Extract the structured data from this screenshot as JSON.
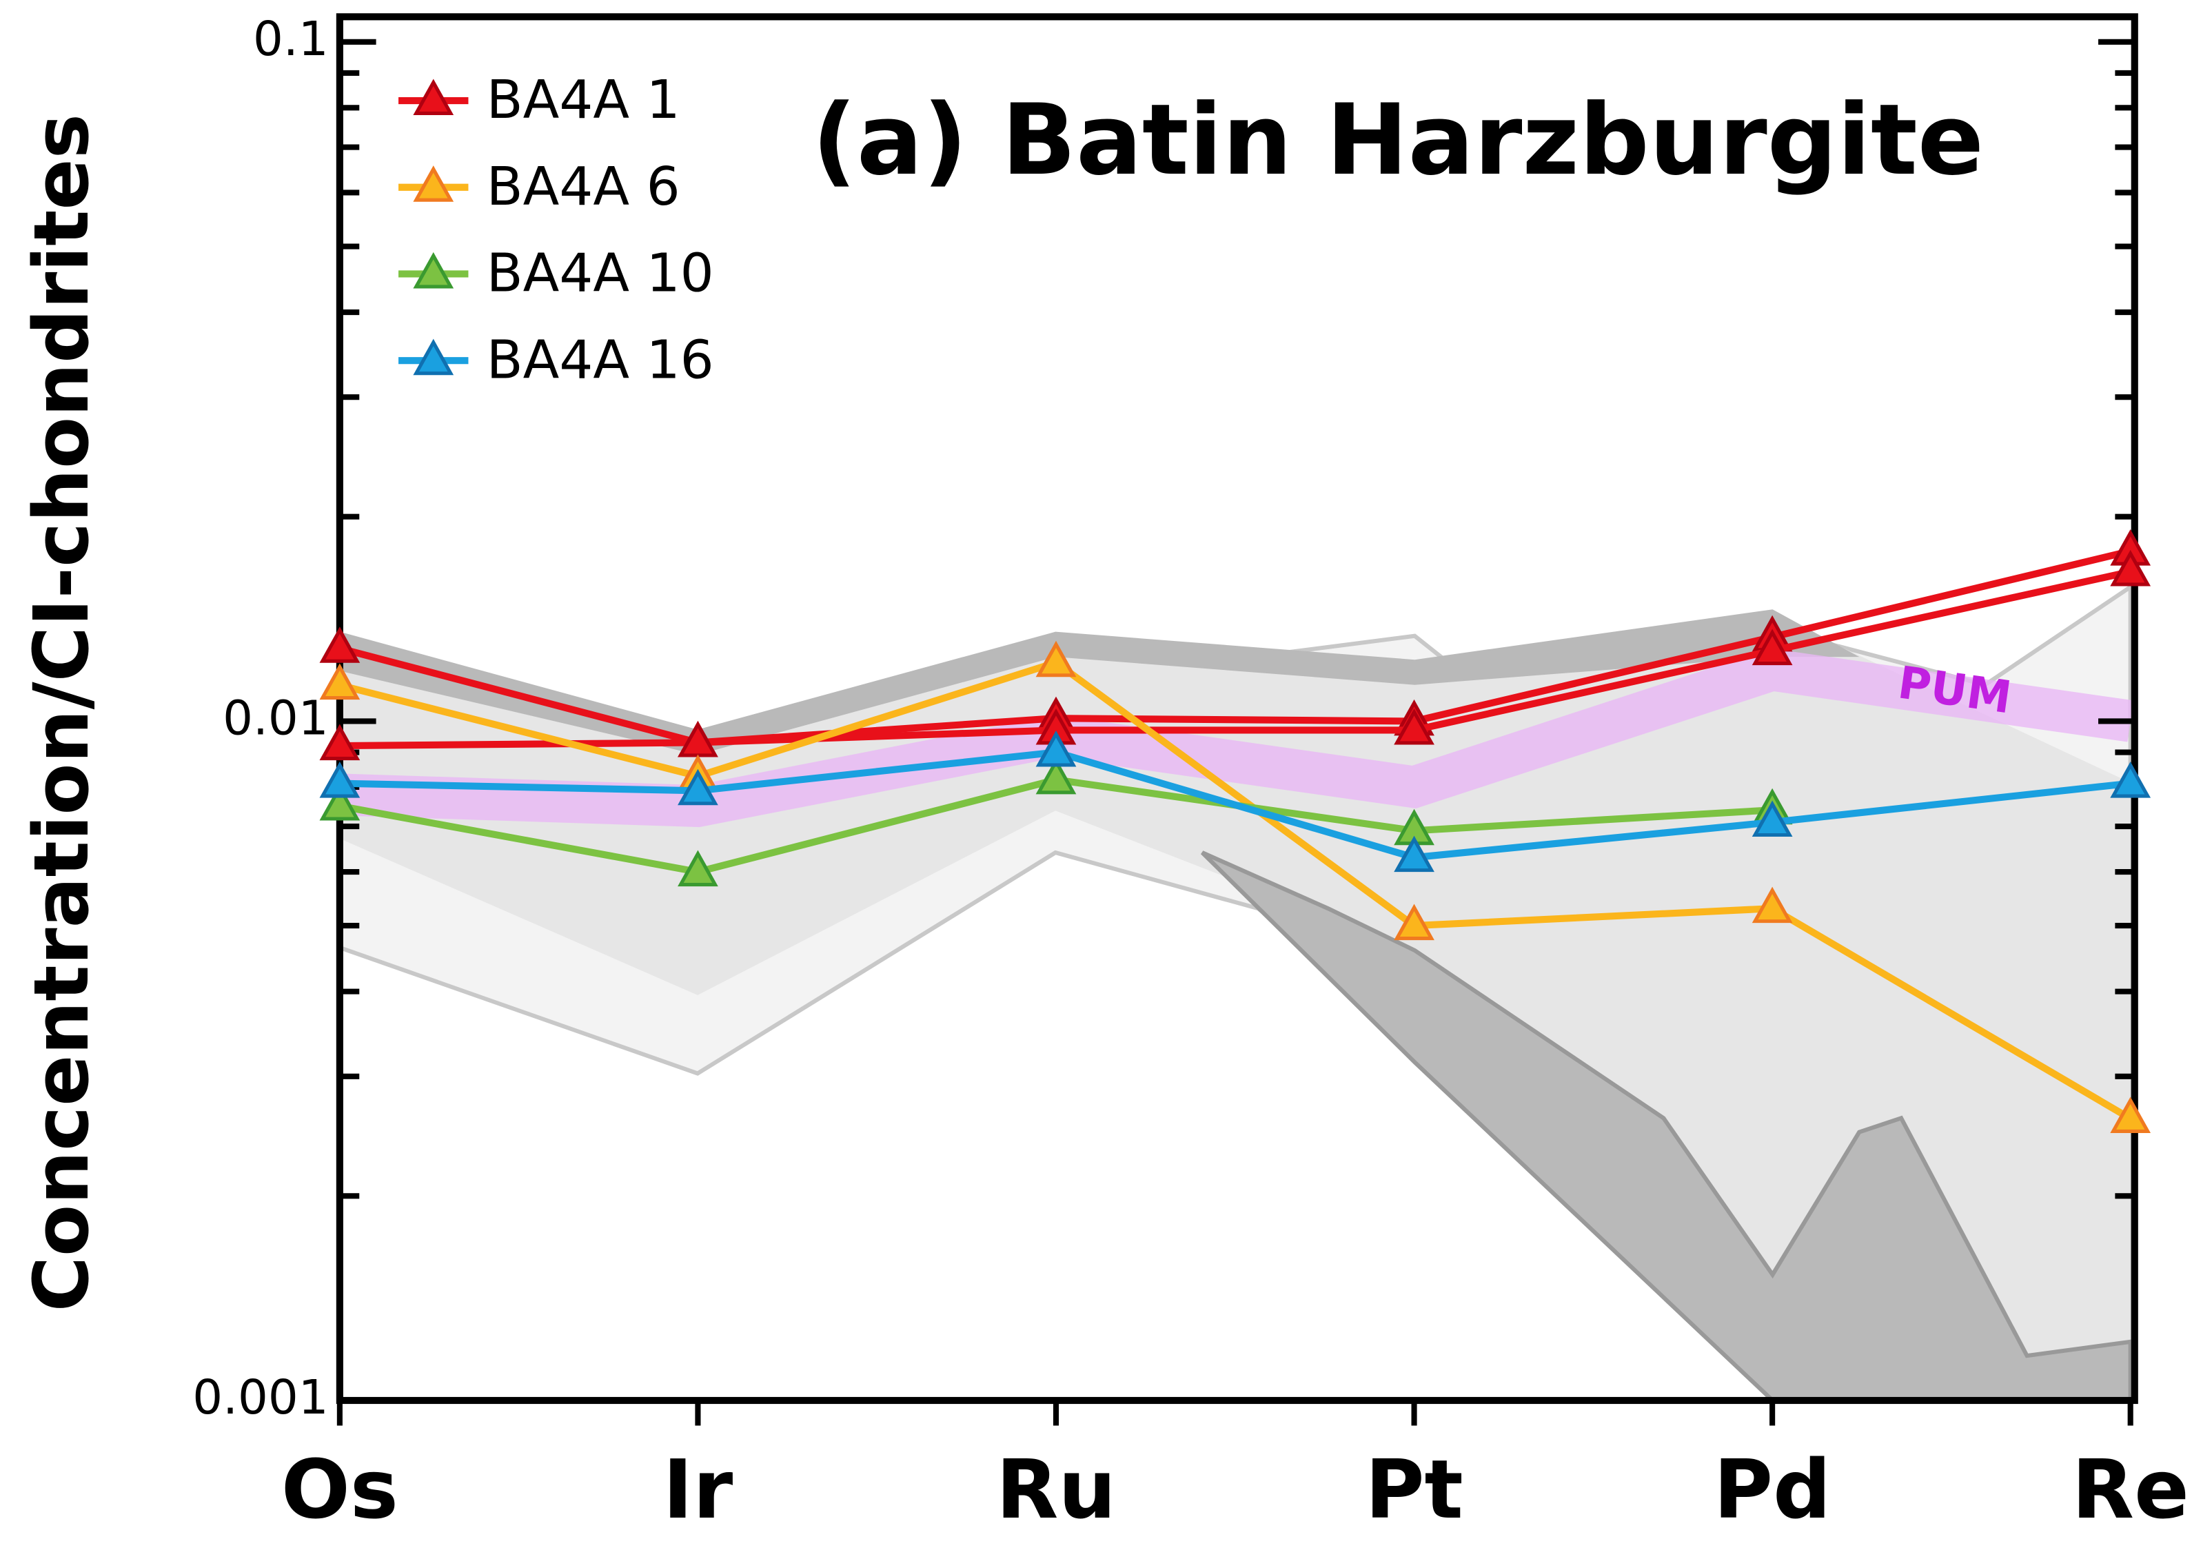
{
  "chart_data": {
    "type": "line",
    "title": "(a) Batin Harzburgite",
    "ylabel": "Concentration/CI-chondrites",
    "categories": [
      "Os",
      "Ir",
      "Ru",
      "Pt",
      "Pd",
      "Re"
    ],
    "log_y": true,
    "ylim": [
      0.001,
      0.1
    ],
    "yticks": [
      0.001,
      0.01,
      0.1
    ],
    "yticks_minor": [
      0.002,
      0.003,
      0.004,
      0.005,
      0.006,
      0.007,
      0.008,
      0.009,
      0.02,
      0.03,
      0.04,
      0.05,
      0.06,
      0.07,
      0.08,
      0.09
    ],
    "legend": "upper left",
    "marker": "triangle",
    "band": {
      "name": "PUM",
      "color": "#e9b8f5",
      "label_color": "#c020e0",
      "values": [
        0.0078,
        0.0075,
        0.0095,
        0.008,
        0.0119,
        0.01
      ]
    },
    "series": [
      {
        "name": "BA4A 1",
        "color": "#e8101a",
        "edge": "#b00010",
        "values": [
          0.0128,
          0.0093,
          0.0101,
          0.01,
          0.0133,
          0.0178
        ]
      },
      {
        "name": "BA4A 1",
        "color": "#e8101a",
        "edge": "#b00010",
        "values": [
          0.0092,
          0.0093,
          0.0097,
          0.0097,
          0.0127,
          0.0166
        ]
      },
      {
        "name": "BA4A 6",
        "color": "#fbb51c",
        "edge": "#f07a20",
        "values": [
          0.0113,
          0.0083,
          0.0122,
          0.005,
          0.0053,
          0.0026
        ]
      },
      {
        "name": "BA4A 10",
        "color": "#7cc242",
        "edge": "#3a9a30",
        "values": [
          0.0075,
          0.006,
          0.0082,
          0.0069,
          0.0074,
          null
        ]
      },
      {
        "name": "BA4A 16",
        "color": "#1aa0e0",
        "edge": "#1070b0",
        "values": [
          0.0081,
          0.0079,
          0.009,
          0.0063,
          0.0071,
          0.0081
        ]
      }
    ]
  }
}
